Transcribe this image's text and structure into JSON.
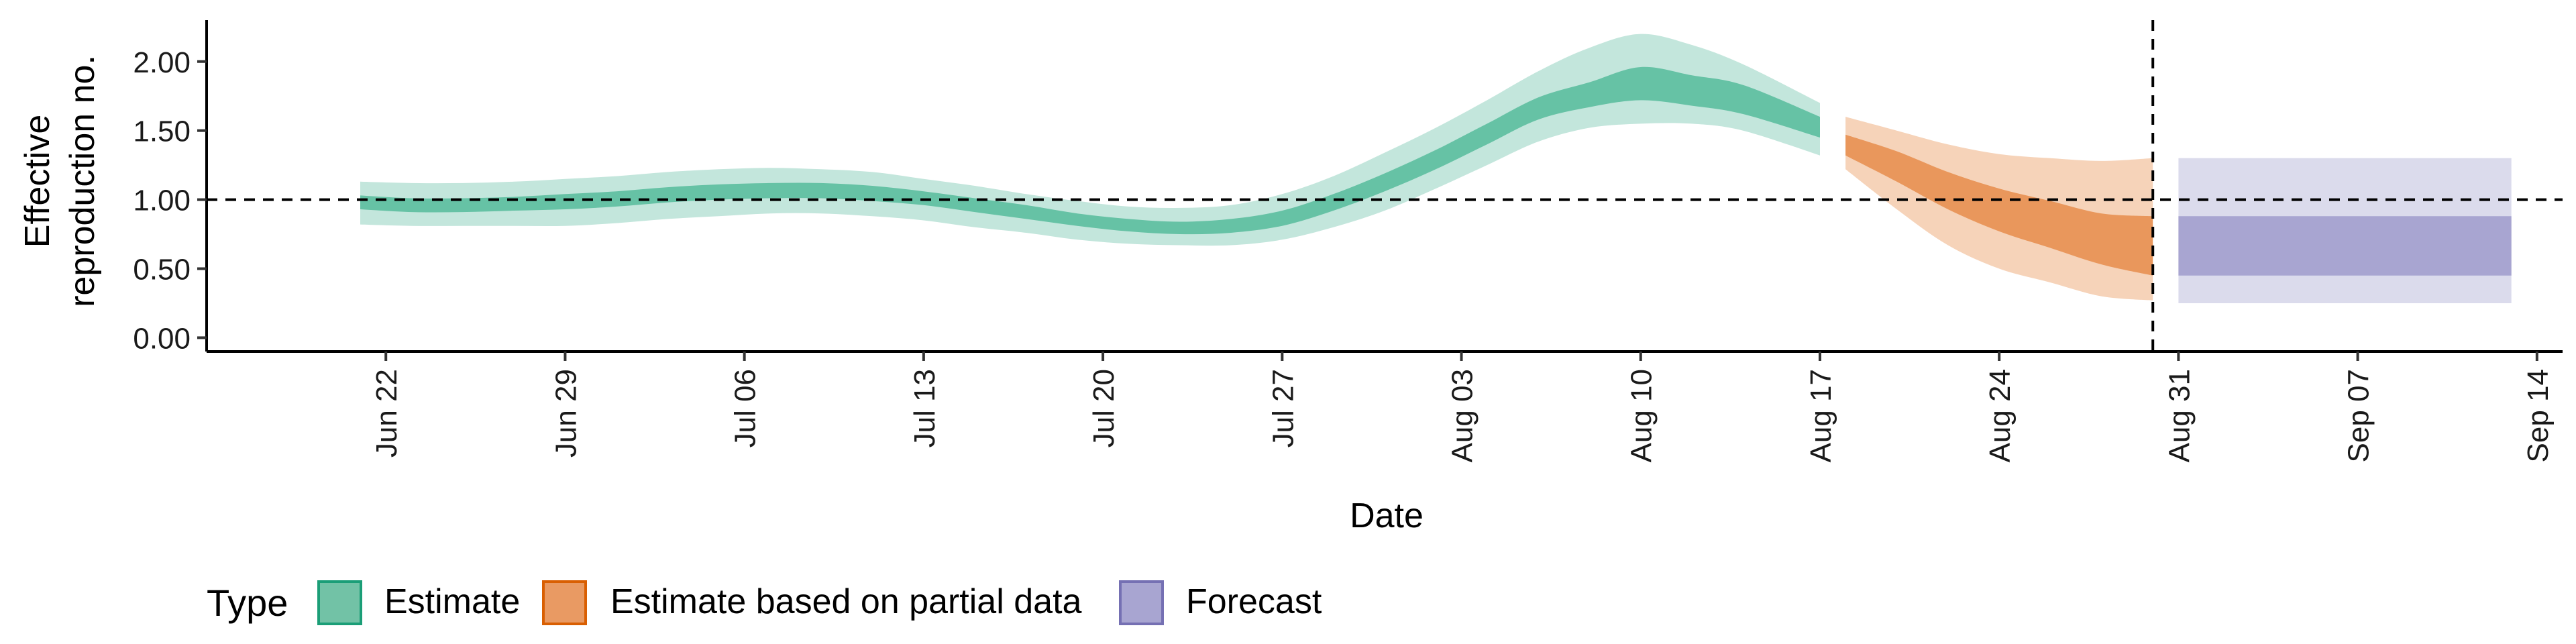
{
  "chart_data": {
    "type": "area",
    "xlabel": "Date",
    "ylabel": [
      "Effective",
      "reproduction no."
    ],
    "ylim": [
      -0.1,
      2.3
    ],
    "y_ticks": [
      0.0,
      0.5,
      1.0,
      1.5,
      2.0
    ],
    "y_tick_labels": [
      "0.00",
      "0.50",
      "1.00",
      "1.50",
      "2.00"
    ],
    "x_ticks": [
      "2020-06-22",
      "2020-06-29",
      "2020-07-06",
      "2020-07-13",
      "2020-07-20",
      "2020-07-27",
      "2020-08-03",
      "2020-08-10",
      "2020-08-17",
      "2020-08-24",
      "2020-08-31",
      "2020-09-07",
      "2020-09-14"
    ],
    "x_tick_labels": [
      "Jun 22",
      "Jun 29",
      "Jul 06",
      "Jul 13",
      "Jul 20",
      "Jul 27",
      "Aug 03",
      "Aug 10",
      "Aug 17",
      "Aug 24",
      "Aug 31",
      "Sep 07",
      "Sep 14"
    ],
    "xlim": [
      "2020-06-15",
      "2020-09-15"
    ],
    "reference_line_y": 1.0,
    "vertical_line_x": "2020-08-30",
    "grid": false,
    "legend": {
      "title": "Type",
      "position": "bottom-left",
      "entries": [
        "Estimate",
        "Estimate based on partial data",
        "Forecast"
      ]
    },
    "colors": {
      "estimate_outer": "#c3e6dc",
      "estimate_inner": "#66c2a5",
      "partial_outer": "#f6d3b9",
      "partial_inner": "#e9975c",
      "forecast_outer": "#dbdbec",
      "forecast_inner": "#a8a5d1",
      "legend_estimate_fill": "#72c2a6",
      "legend_estimate_stroke": "#1b9e77",
      "legend_partial_fill": "#e99a63",
      "legend_partial_stroke": "#d95f02",
      "legend_forecast_fill": "#a8a5d1",
      "legend_forecast_stroke": "#7570b3"
    },
    "series": [
      {
        "name": "Estimate",
        "x": [
          "2020-06-21",
          "2020-06-23",
          "2020-06-25",
          "2020-06-27",
          "2020-06-29",
          "2020-07-01",
          "2020-07-03",
          "2020-07-05",
          "2020-07-07",
          "2020-07-09",
          "2020-07-11",
          "2020-07-13",
          "2020-07-15",
          "2020-07-17",
          "2020-07-19",
          "2020-07-21",
          "2020-07-23",
          "2020-07-25",
          "2020-07-27",
          "2020-07-29",
          "2020-07-31",
          "2020-08-02",
          "2020-08-04",
          "2020-08-06",
          "2020-08-08",
          "2020-08-10",
          "2020-08-12",
          "2020-08-14",
          "2020-08-17"
        ],
        "lower_90": [
          0.82,
          0.81,
          0.81,
          0.81,
          0.81,
          0.83,
          0.86,
          0.88,
          0.9,
          0.9,
          0.88,
          0.85,
          0.8,
          0.76,
          0.71,
          0.68,
          0.67,
          0.67,
          0.71,
          0.8,
          0.92,
          1.08,
          1.25,
          1.42,
          1.52,
          1.55,
          1.55,
          1.5,
          1.32
        ],
        "lower_50": [
          0.93,
          0.91,
          0.91,
          0.92,
          0.93,
          0.95,
          0.98,
          1.0,
          1.01,
          1.01,
          0.99,
          0.96,
          0.91,
          0.86,
          0.81,
          0.77,
          0.75,
          0.76,
          0.81,
          0.92,
          1.06,
          1.22,
          1.4,
          1.58,
          1.67,
          1.72,
          1.68,
          1.62,
          1.45
        ],
        "upper_50": [
          1.03,
          1.01,
          1.01,
          1.02,
          1.04,
          1.06,
          1.09,
          1.11,
          1.12,
          1.12,
          1.1,
          1.06,
          1.01,
          0.96,
          0.9,
          0.86,
          0.84,
          0.86,
          0.92,
          1.04,
          1.19,
          1.36,
          1.55,
          1.74,
          1.85,
          1.96,
          1.9,
          1.83,
          1.6
        ],
        "upper_90": [
          1.13,
          1.12,
          1.12,
          1.13,
          1.15,
          1.17,
          1.2,
          1.22,
          1.23,
          1.22,
          1.2,
          1.15,
          1.1,
          1.04,
          0.99,
          0.95,
          0.94,
          0.96,
          1.04,
          1.17,
          1.34,
          1.52,
          1.72,
          1.93,
          2.1,
          2.2,
          2.12,
          1.98,
          1.7
        ]
      },
      {
        "name": "Estimate based on partial data",
        "x": [
          "2020-08-18",
          "2020-08-20",
          "2020-08-22",
          "2020-08-24",
          "2020-08-26",
          "2020-08-28",
          "2020-08-30"
        ],
        "lower_90": [
          1.22,
          0.93,
          0.67,
          0.5,
          0.4,
          0.3,
          0.27
        ],
        "lower_50": [
          1.32,
          1.13,
          0.93,
          0.77,
          0.65,
          0.53,
          0.45
        ],
        "upper_50": [
          1.47,
          1.35,
          1.2,
          1.08,
          0.99,
          0.9,
          0.88
        ],
        "upper_90": [
          1.6,
          1.5,
          1.4,
          1.33,
          1.3,
          1.28,
          1.3
        ]
      },
      {
        "name": "Forecast",
        "x": [
          "2020-08-31",
          "2020-09-13"
        ],
        "lower_90": [
          0.25,
          0.25
        ],
        "lower_50": [
          0.45,
          0.45
        ],
        "upper_50": [
          0.88,
          0.88
        ],
        "upper_90": [
          1.3,
          1.3
        ]
      }
    ]
  }
}
